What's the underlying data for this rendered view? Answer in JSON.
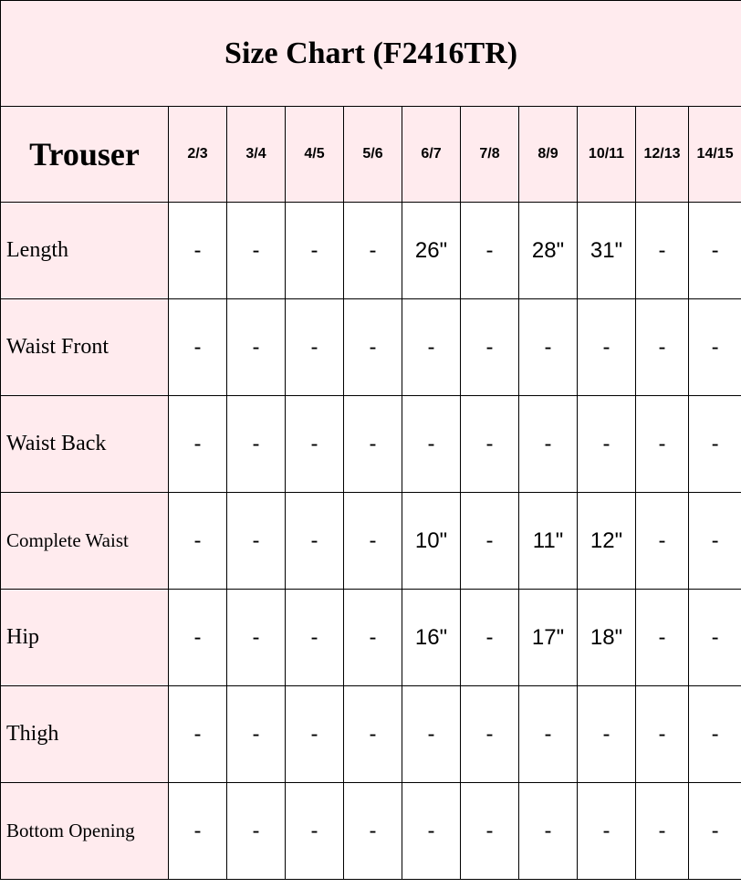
{
  "title": "Size Chart (F2416TR)",
  "corner_label": "Trouser",
  "background_color": "#ffebee",
  "sizes": [
    "2/3",
    "3/4",
    "4/5",
    "5/6",
    "6/7",
    "7/8",
    "8/9",
    "10/11",
    "12/13",
    "14/15"
  ],
  "rows": [
    {
      "label": "Length",
      "values": [
        "-",
        "-",
        "-",
        "-",
        "26\"",
        "-",
        "28\"",
        "31\"",
        "-",
        "-"
      ]
    },
    {
      "label": "Waist Front",
      "values": [
        "-",
        "-",
        "-",
        "-",
        "-",
        "-",
        "-",
        "-",
        "-",
        "-"
      ]
    },
    {
      "label": "Waist Back",
      "values": [
        "-",
        "-",
        "-",
        "-",
        "-",
        "-",
        "-",
        "-",
        "-",
        "-"
      ]
    },
    {
      "label": "Complete Waist",
      "values": [
        "-",
        "-",
        "-",
        "-",
        "10\"",
        "-",
        "11\"",
        "12\"",
        "-",
        "-"
      ]
    },
    {
      "label": "Hip",
      "values": [
        "-",
        "-",
        "-",
        "-",
        "16\"",
        "-",
        "17\"",
        "18\"",
        "-",
        "-"
      ]
    },
    {
      "label": "Thigh",
      "values": [
        "-",
        "-",
        "-",
        "-",
        "-",
        "-",
        "-",
        "-",
        "-",
        "-"
      ]
    },
    {
      "label": "Bottom Opening",
      "values": [
        "-",
        "-",
        "-",
        "-",
        "-",
        "-",
        "-",
        "-",
        "-",
        "-"
      ]
    }
  ]
}
